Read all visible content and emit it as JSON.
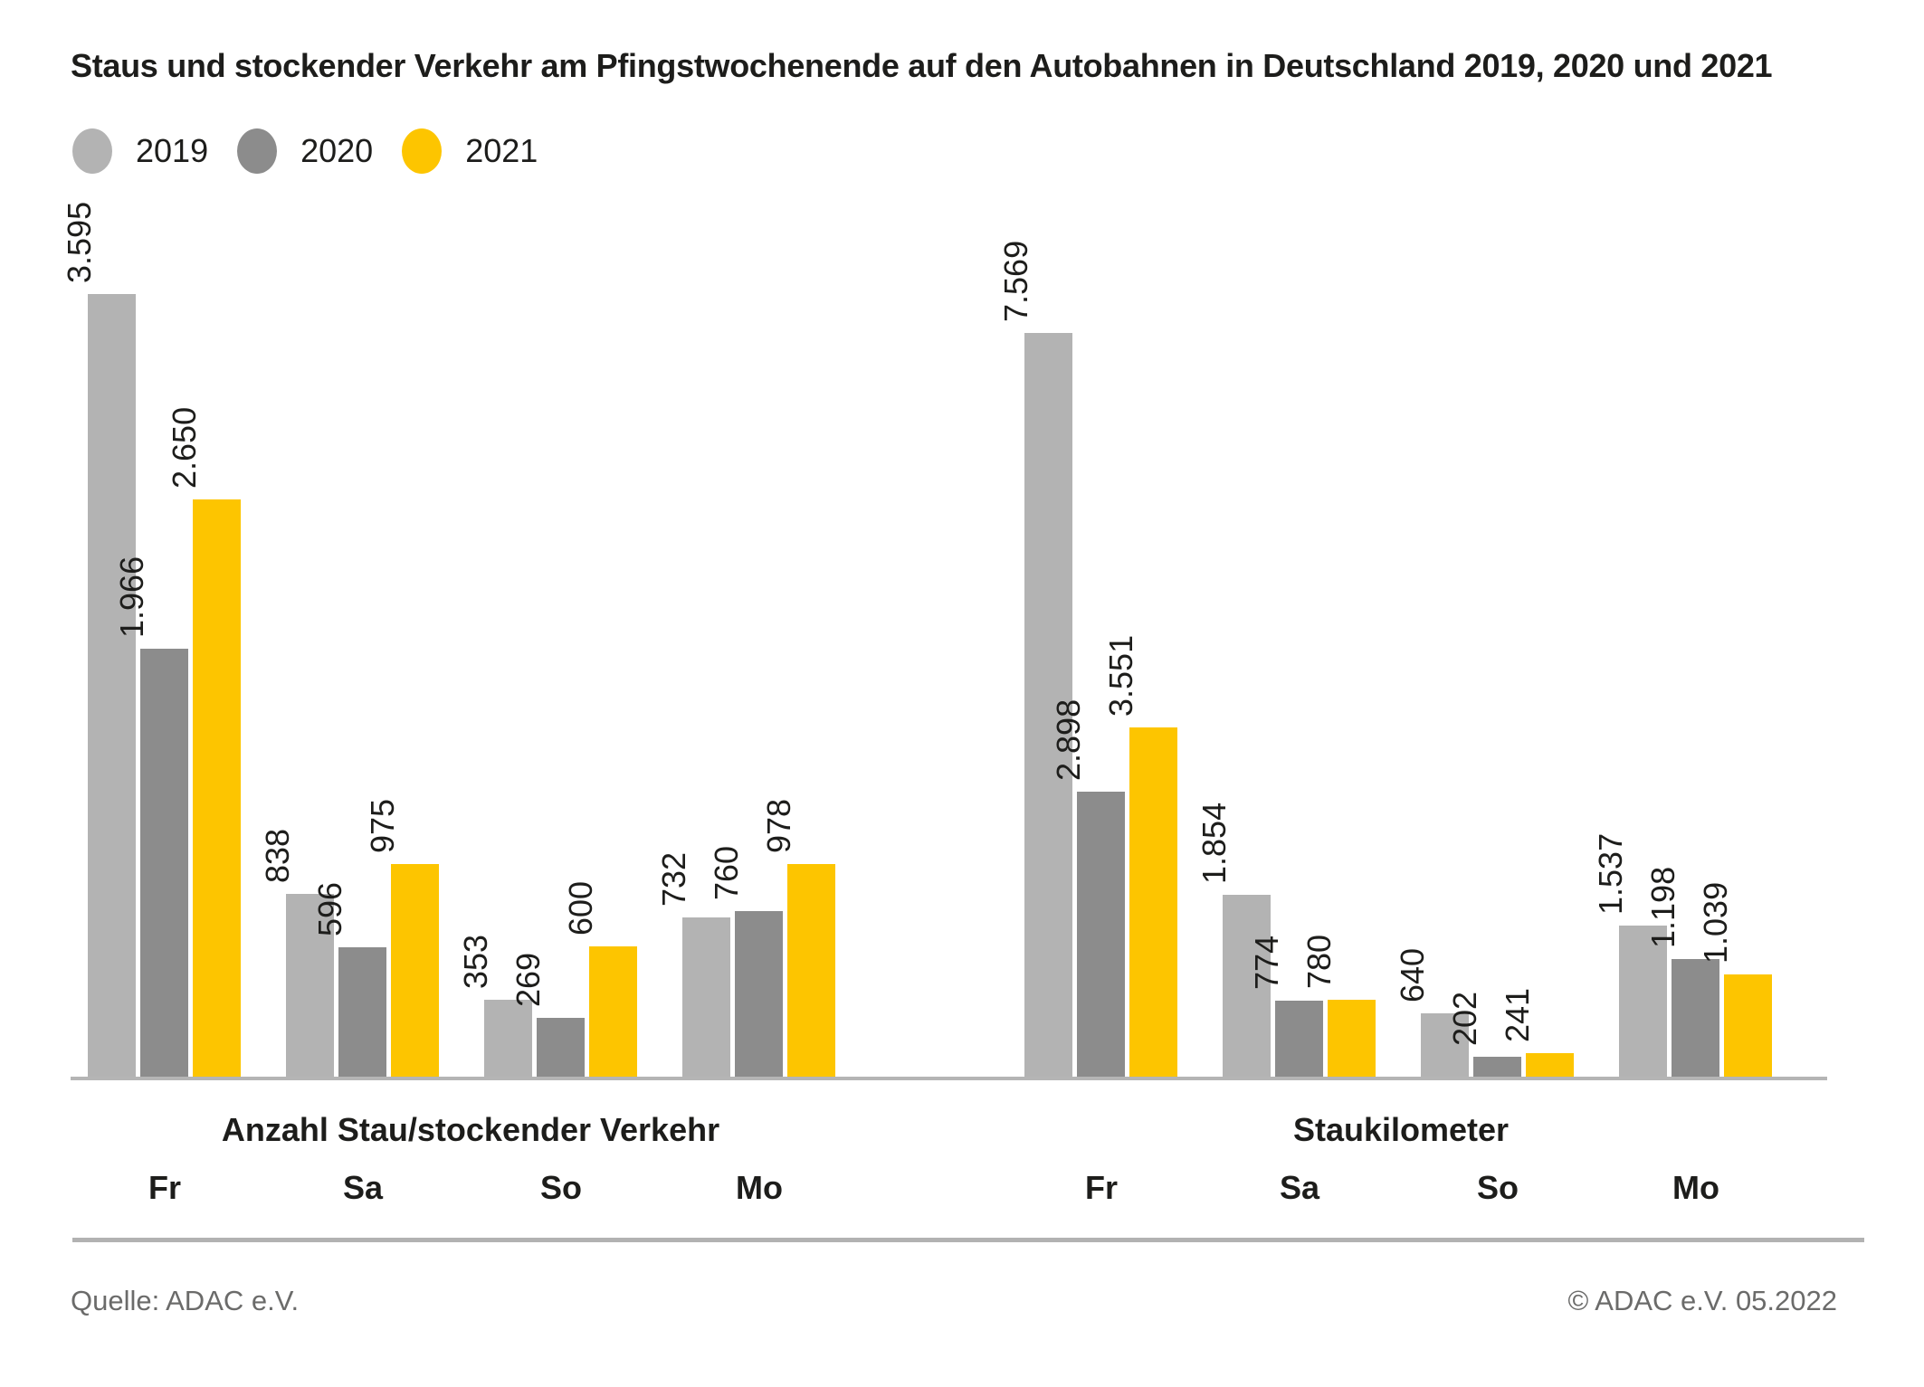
{
  "title": "Staus und stockender Verkehr am Pfingstwochenende auf den Autobahnen in Deutschland 2019, 2020 und 2021",
  "legend": [
    {
      "label": "2019",
      "color": "#b3b3b3"
    },
    {
      "label": "2020",
      "color": "#8c8c8c"
    },
    {
      "label": "2021",
      "color": "#fdc500"
    }
  ],
  "footer": {
    "source": "Quelle: ADAC e.V.",
    "copyright": "© ADAC e.V. 05.2022"
  },
  "chart_data": {
    "type": "bar",
    "title": "Staus und stockender Verkehr am Pfingstwochenende auf den Autobahnen in Deutschland 2019, 2020 und 2021",
    "legend_position": "top-left",
    "grid": false,
    "value_label_style": "rotated-90-above-bar",
    "panels": [
      {
        "title": "Anzahl Stau/stockender Verkehr",
        "categories": [
          "Fr",
          "Sa",
          "So",
          "Mo"
        ],
        "ylim": [
          0,
          3700
        ],
        "series": [
          {
            "name": "2019",
            "color": "#b3b3b3",
            "values": [
              3595,
              838,
              353,
              732
            ],
            "labels": [
              "3.595",
              "838",
              "353",
              "732"
            ]
          },
          {
            "name": "2020",
            "color": "#8c8c8c",
            "values": [
              1966,
              596,
              269,
              760
            ],
            "labels": [
              "1.966",
              "596",
              "269",
              "760"
            ]
          },
          {
            "name": "2021",
            "color": "#fdc500",
            "values": [
              2650,
              975,
              600,
              978
            ],
            "labels": [
              "2.650",
              "975",
              "600",
              "978"
            ]
          }
        ]
      },
      {
        "title": "Staukilometer",
        "categories": [
          "Fr",
          "Sa",
          "So",
          "Mo"
        ],
        "ylim": [
          0,
          7700
        ],
        "series": [
          {
            "name": "2019",
            "color": "#b3b3b3",
            "values": [
              7569,
              1854,
              640,
              1537
            ],
            "labels": [
              "7.569",
              "1.854",
              "640",
              "1.537"
            ]
          },
          {
            "name": "2020",
            "color": "#8c8c8c",
            "values": [
              2898,
              774,
              202,
              1198
            ],
            "labels": [
              "2.898",
              "774",
              "202",
              "1.198"
            ]
          },
          {
            "name": "2021",
            "color": "#fdc500",
            "values": [
              3551,
              780,
              241,
              1039
            ],
            "labels": [
              "3.551",
              "780",
              "241",
              "1.039"
            ]
          }
        ]
      }
    ]
  }
}
